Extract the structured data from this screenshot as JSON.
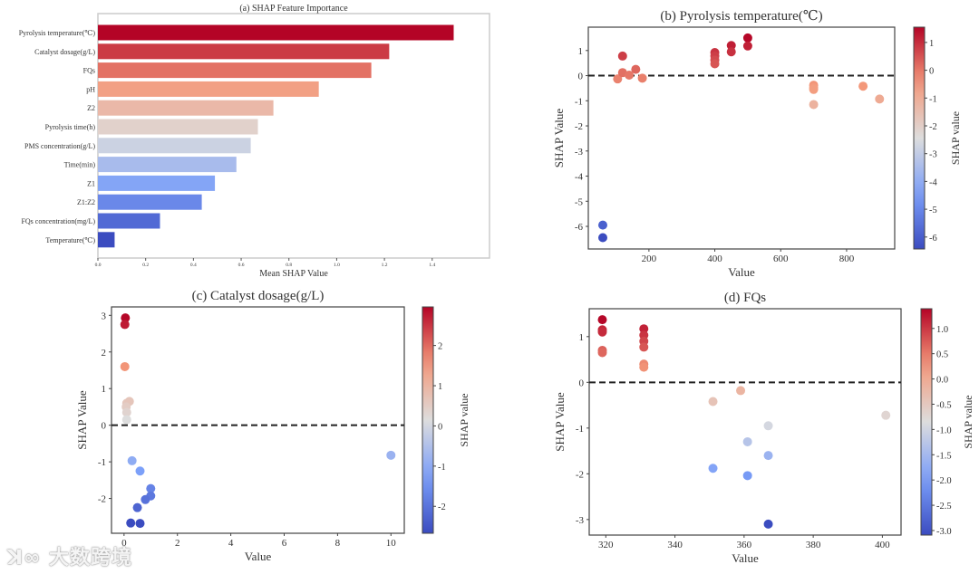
{
  "watermark": "大数跨境",
  "colormap": [
    "#3b4cc0",
    "#7b9ff9",
    "#dddddd",
    "#f49a7b",
    "#b40426"
  ],
  "chart_data": [
    {
      "id": "a",
      "type": "bar",
      "orientation": "horizontal",
      "title": "(a) SHAP Feature Importance",
      "xlabel": "Mean SHAP Value",
      "categories": [
        "Pyrolysis temperature(℃)",
        "Catalyst dosage(g/L)",
        "FQs",
        "pH",
        "Z2",
        "Pyrolysis time(h)",
        "PMS concentration(g/L)",
        "Time(min)",
        "Z1",
        "Z1:Z2",
        "FQs concentration(mg/L)",
        "Temperature(℃)"
      ],
      "values": [
        1.49,
        1.22,
        1.145,
        0.925,
        0.735,
        0.67,
        0.64,
        0.58,
        0.49,
        0.435,
        0.26,
        0.07
      ],
      "xlim": [
        0,
        1.64
      ],
      "xticks": [
        "0.0",
        "0.2",
        "0.4",
        "0.6",
        "0.8",
        "1.0",
        "1.2",
        "1.4"
      ]
    },
    {
      "id": "b",
      "type": "scatter",
      "title": "(b) Pyrolysis temperature(℃)",
      "xlabel": "Value",
      "ylabel": "SHAP Value",
      "colorbar_label": "SHAP value",
      "xlim": [
        16,
        946
      ],
      "ylim": [
        -6.9,
        1.93
      ],
      "xticks": [
        "200",
        "400",
        "600",
        "800"
      ],
      "yticks": [
        "1",
        "0",
        "-1",
        "-2",
        "-3",
        "-4",
        "-5",
        "-6"
      ],
      "clim": [
        -6.43,
        1.55
      ],
      "cticks": [
        "1",
        "0",
        "-1",
        "-2",
        "-3",
        "-4",
        "-5",
        "-6"
      ],
      "reference_line": 0,
      "points": [
        [
          60,
          -5.95
        ],
        [
          60,
          -6.45
        ],
        [
          105,
          -0.13
        ],
        [
          120,
          0.78
        ],
        [
          120,
          0.12
        ],
        [
          140,
          0.02
        ],
        [
          160,
          0.25
        ],
        [
          180,
          -0.1
        ],
        [
          400,
          0.92
        ],
        [
          400,
          0.78
        ],
        [
          400,
          0.62
        ],
        [
          400,
          0.47
        ],
        [
          450,
          1.2
        ],
        [
          450,
          0.95
        ],
        [
          500,
          1.5
        ],
        [
          500,
          1.18
        ],
        [
          700,
          -0.38
        ],
        [
          700,
          -0.48
        ],
        [
          700,
          -0.55
        ],
        [
          700,
          -1.15
        ],
        [
          850,
          -0.42
        ],
        [
          900,
          -0.93
        ]
      ]
    },
    {
      "id": "c",
      "type": "scatter",
      "title": "(c) Catalyst dosage(g/L)",
      "xlabel": "Value",
      "ylabel": "SHAP Value",
      "colorbar_label": "SHAP value",
      "xlim": [
        -0.47,
        10.5
      ],
      "ylim": [
        -2.95,
        3.23
      ],
      "xticks": [
        "0",
        "2",
        "4",
        "6",
        "8",
        "10"
      ],
      "yticks": [
        "3",
        "2",
        "1",
        "0",
        "-1",
        "-2"
      ],
      "clim": [
        -2.67,
        2.96
      ],
      "cticks": [
        "2",
        "1",
        "0",
        "-1",
        "-2"
      ],
      "reference_line": 0,
      "points": [
        [
          0.05,
          2.93
        ],
        [
          0.03,
          2.75
        ],
        [
          0.03,
          1.6
        ],
        [
          0.1,
          0.6
        ],
        [
          0.2,
          0.65
        ],
        [
          0.08,
          0.5
        ],
        [
          0.1,
          0.35
        ],
        [
          0.1,
          0.15
        ],
        [
          0.3,
          -0.97
        ],
        [
          0.6,
          -1.25
        ],
        [
          1.0,
          -1.73
        ],
        [
          1.0,
          -1.93
        ],
        [
          0.8,
          -2.03
        ],
        [
          0.5,
          -2.25
        ],
        [
          0.25,
          -2.67
        ],
        [
          0.6,
          -2.68
        ],
        [
          10,
          -0.82
        ]
      ]
    },
    {
      "id": "d",
      "type": "scatter",
      "title": "(d) FQs",
      "xlabel": "Value",
      "ylabel": "SHAP Value",
      "colorbar_label": "SHAP value",
      "xlim": [
        315.2,
        405.4
      ],
      "ylim": [
        -3.34,
        1.61
      ],
      "xticks": [
        "320",
        "340",
        "360",
        "380",
        "400"
      ],
      "yticks": [
        "1",
        "0",
        "-1",
        "-2",
        "-3"
      ],
      "clim": [
        -3.09,
        1.39
      ],
      "cticks": [
        "1.0",
        "0.5",
        "0.0",
        "-0.5",
        "-1.0",
        "-1.5",
        "-2.0",
        "-2.5",
        "-3.0"
      ],
      "reference_line": 0,
      "points": [
        [
          319,
          1.37
        ],
        [
          319,
          1.15
        ],
        [
          319,
          1.1
        ],
        [
          319,
          0.7
        ],
        [
          319,
          0.65
        ],
        [
          331,
          1.17
        ],
        [
          331,
          1.03
        ],
        [
          331,
          0.9
        ],
        [
          331,
          0.77
        ],
        [
          331,
          0.4
        ],
        [
          331,
          0.33
        ],
        [
          351,
          -0.42
        ],
        [
          359,
          -0.18
        ],
        [
          401,
          -0.72
        ],
        [
          367,
          -0.95
        ],
        [
          361,
          -1.3
        ],
        [
          367,
          -1.6
        ],
        [
          351,
          -1.88
        ],
        [
          361,
          -2.04
        ],
        [
          367,
          -3.1
        ]
      ]
    }
  ]
}
